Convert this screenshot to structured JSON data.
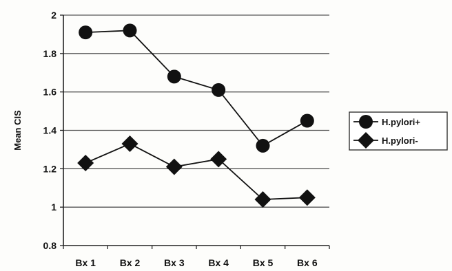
{
  "chart_data": {
    "type": "line",
    "title": "",
    "xlabel": "",
    "ylabel": "Mean CIS",
    "categories": [
      "Bx 1",
      "Bx 2",
      "Bx 3",
      "Bx 4",
      "Bx 5",
      "Bx 6"
    ],
    "ylim": [
      0.8,
      2
    ],
    "yticks": [
      "0.8",
      "1",
      "1.2",
      "1.4",
      "1.6",
      "1.8",
      "2"
    ],
    "grid": "horizontal",
    "legend_position": "right",
    "series": [
      {
        "name": "H.pylori+",
        "marker": "circle",
        "color": "#111111",
        "values": [
          1.91,
          1.92,
          1.68,
          1.61,
          1.32,
          1.45
        ]
      },
      {
        "name": "H.pylori-",
        "marker": "diamond",
        "color": "#111111",
        "values": [
          1.23,
          1.33,
          1.21,
          1.25,
          1.04,
          1.05
        ]
      }
    ]
  }
}
